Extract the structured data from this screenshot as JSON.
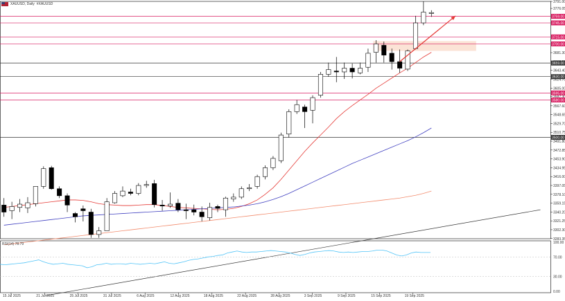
{
  "header": {
    "symbol": "XAUUSD, Daily",
    "symbol_alt": "#XAUUSD"
  },
  "colors": {
    "up_candle": "#ffffff",
    "down_candle": "#000000",
    "ma_fast": "#e53935",
    "ma_mid": "#3f3fc0",
    "ma_slow": "#f28a6b",
    "level_line": "#d81b60",
    "support_line": "#333333",
    "arrow": "#e53935",
    "zone": "#fbe3d6",
    "rsi": "#4fc3f7"
  },
  "chart_data": [
    {
      "type": "candlestick",
      "timeframe": "Daily",
      "ylim": [
        3283.0,
        3791.0
      ],
      "x_tick_labels": [
        "15 Jul 2025",
        "21 Jul 2025",
        "25 Jul 2025",
        "31 Jul 2025",
        "6 Aug 2025",
        "12 Aug 2025",
        "18 Aug 2025",
        "22 Aug 2025",
        "28 Aug 2025",
        "3 Sep 2025",
        "9 Sep 2025",
        "15 Sep 2025",
        "19 Sep 2025"
      ],
      "y_tick_labels": [
        "3791.00",
        "3776.05",
        "3681.30",
        "3662.20",
        "3643.40",
        "3624.70",
        "3605.00",
        "3587.30",
        "3567.60",
        "3548.65",
        "3529.70",
        "3510.75",
        "3491.80",
        "3472.85",
        "3453.90",
        "3434.95",
        "3416.00",
        "3397.05",
        "3378.10",
        "3359.15",
        "3340.20",
        "3321.25",
        "3302.30",
        "3283.35"
      ],
      "level_labels": [
        {
          "label": "3759.00",
          "value": 3759.0,
          "color": "#d81b60"
        },
        {
          "label": "3745.00",
          "value": 3745.0,
          "color": "#d81b60"
        },
        {
          "label": "3715.00",
          "value": 3715.0,
          "color": "#d81b60"
        },
        {
          "label": "3700.00",
          "value": 3700.0,
          "color": "#d81b60"
        },
        {
          "label": "3659.00",
          "value": 3659.0,
          "color": "#333333"
        },
        {
          "label": "3630.00",
          "value": 3630.0,
          "color": "#333333"
        },
        {
          "label": "3595.00",
          "value": 3595.0,
          "color": "#d81b60"
        },
        {
          "label": "3580.00",
          "value": 3580.0,
          "color": "#d81b60"
        },
        {
          "label": "3500.00",
          "value": 3500.0,
          "color": "#333333"
        }
      ],
      "candles": [
        {
          "o": 3355,
          "h": 3370,
          "l": 3330,
          "c": 3340
        },
        {
          "o": 3343,
          "h": 3362,
          "l": 3325,
          "c": 3352
        },
        {
          "o": 3350,
          "h": 3368,
          "l": 3340,
          "c": 3357
        },
        {
          "o": 3349,
          "h": 3372,
          "l": 3338,
          "c": 3360
        },
        {
          "o": 3358,
          "h": 3395,
          "l": 3352,
          "c": 3395
        },
        {
          "o": 3395,
          "h": 3438,
          "l": 3390,
          "c": 3433
        },
        {
          "o": 3435,
          "h": 3439,
          "l": 3388,
          "c": 3390
        },
        {
          "o": 3390,
          "h": 3395,
          "l": 3370,
          "c": 3375
        },
        {
          "o": 3375,
          "h": 3380,
          "l": 3340,
          "c": 3355
        },
        {
          "o": 3337,
          "h": 3340,
          "l": 3318,
          "c": 3330
        },
        {
          "o": 3347,
          "h": 3354,
          "l": 3320,
          "c": 3343
        },
        {
          "o": 3340,
          "h": 3347,
          "l": 3285,
          "c": 3292
        },
        {
          "o": 3292,
          "h": 3308,
          "l": 3285,
          "c": 3300
        },
        {
          "o": 3300,
          "h": 3370,
          "l": 3300,
          "c": 3362
        },
        {
          "o": 3360,
          "h": 3385,
          "l": 3358,
          "c": 3380
        },
        {
          "o": 3375,
          "h": 3395,
          "l": 3372,
          "c": 3385
        },
        {
          "o": 3383,
          "h": 3390,
          "l": 3376,
          "c": 3380
        },
        {
          "o": 3380,
          "h": 3402,
          "l": 3376,
          "c": 3397
        },
        {
          "o": 3397,
          "h": 3407,
          "l": 3392,
          "c": 3399
        },
        {
          "o": 3401,
          "h": 3409,
          "l": 3350,
          "c": 3356
        },
        {
          "o": 3355,
          "h": 3366,
          "l": 3343,
          "c": 3353
        },
        {
          "o": 3353,
          "h": 3382,
          "l": 3349,
          "c": 3357
        },
        {
          "o": 3359,
          "h": 3368,
          "l": 3340,
          "c": 3345
        },
        {
          "o": 3345,
          "h": 3358,
          "l": 3325,
          "c": 3343
        },
        {
          "o": 3345,
          "h": 3356,
          "l": 3333,
          "c": 3340
        },
        {
          "o": 3340,
          "h": 3352,
          "l": 3320,
          "c": 3330
        },
        {
          "o": 3328,
          "h": 3360,
          "l": 3322,
          "c": 3350
        },
        {
          "o": 3352,
          "h": 3356,
          "l": 3340,
          "c": 3348
        },
        {
          "o": 3345,
          "h": 3373,
          "l": 3330,
          "c": 3370
        },
        {
          "o": 3368,
          "h": 3380,
          "l": 3362,
          "c": 3372
        },
        {
          "o": 3372,
          "h": 3395,
          "l": 3368,
          "c": 3390
        },
        {
          "o": 3390,
          "h": 3400,
          "l": 3385,
          "c": 3392
        },
        {
          "o": 3395,
          "h": 3420,
          "l": 3390,
          "c": 3416
        },
        {
          "o": 3416,
          "h": 3440,
          "l": 3410,
          "c": 3435
        },
        {
          "o": 3435,
          "h": 3460,
          "l": 3430,
          "c": 3455
        },
        {
          "o": 3450,
          "h": 3510,
          "l": 3445,
          "c": 3505
        },
        {
          "o": 3507,
          "h": 3560,
          "l": 3500,
          "c": 3555
        },
        {
          "o": 3555,
          "h": 3580,
          "l": 3550,
          "c": 3570
        },
        {
          "o": 3565,
          "h": 3570,
          "l": 3520,
          "c": 3555
        },
        {
          "o": 3558,
          "h": 3590,
          "l": 3530,
          "c": 3585
        },
        {
          "o": 3590,
          "h": 3640,
          "l": 3585,
          "c": 3635
        },
        {
          "o": 3635,
          "h": 3660,
          "l": 3630,
          "c": 3645
        },
        {
          "o": 3642,
          "h": 3672,
          "l": 3618,
          "c": 3640
        },
        {
          "o": 3640,
          "h": 3660,
          "l": 3625,
          "c": 3648
        },
        {
          "o": 3648,
          "h": 3658,
          "l": 3626,
          "c": 3640
        },
        {
          "o": 3638,
          "h": 3660,
          "l": 3635,
          "c": 3648
        },
        {
          "o": 3650,
          "h": 3690,
          "l": 3640,
          "c": 3680
        },
        {
          "o": 3682,
          "h": 3708,
          "l": 3660,
          "c": 3700
        },
        {
          "o": 3697,
          "h": 3705,
          "l": 3660,
          "c": 3676
        },
        {
          "o": 3680,
          "h": 3690,
          "l": 3645,
          "c": 3662
        },
        {
          "o": 3662,
          "h": 3688,
          "l": 3638,
          "c": 3648
        },
        {
          "o": 3646,
          "h": 3688,
          "l": 3642,
          "c": 3685
        },
        {
          "o": 3690,
          "h": 3760,
          "l": 3688,
          "c": 3745
        },
        {
          "o": 3745,
          "h": 3791,
          "l": 3740,
          "c": 3768
        },
        {
          "o": 3765,
          "h": 3772,
          "l": 3758,
          "c": 3767
        }
      ],
      "series": [
        {
          "values": [
            3350,
            3352,
            3354,
            3356,
            3358,
            3360,
            3362,
            3364,
            3366,
            3366,
            3365,
            3362,
            3358,
            3356,
            3355,
            3354,
            3354,
            3355,
            3356,
            3356,
            3354,
            3352,
            3350,
            3349,
            3348,
            3347,
            3346,
            3345,
            3346,
            3348,
            3352,
            3358,
            3366,
            3378,
            3392,
            3410,
            3430,
            3450,
            3470,
            3488,
            3505,
            3522,
            3540,
            3555,
            3568,
            3580,
            3592,
            3605,
            3616,
            3627,
            3638,
            3648,
            3660,
            3672,
            3682
          ]
        },
        {
          "values": [
            3312,
            3314,
            3316,
            3318,
            3320,
            3322,
            3324,
            3326,
            3328,
            3330,
            3332,
            3333,
            3334,
            3335,
            3336,
            3337,
            3338,
            3339,
            3340,
            3341,
            3342,
            3343,
            3344,
            3345,
            3346,
            3347,
            3348,
            3349,
            3350,
            3351,
            3353,
            3355,
            3358,
            3362,
            3367,
            3373,
            3380,
            3388,
            3396,
            3404,
            3412,
            3420,
            3428,
            3436,
            3444,
            3451,
            3458,
            3465,
            3472,
            3479,
            3486,
            3493,
            3501,
            3510,
            3520
          ]
        },
        {
          "values": [
            3270,
            3272,
            3274,
            3276,
            3278,
            3280,
            3282,
            3284,
            3286,
            3288,
            3290,
            3292,
            3294,
            3296,
            3298,
            3300,
            3302,
            3304,
            3306,
            3308,
            3310,
            3312,
            3314,
            3316,
            3318,
            3320,
            3322,
            3324,
            3326,
            3328,
            3330,
            3332,
            3334,
            3336,
            3338,
            3340,
            3342,
            3344,
            3346,
            3348,
            3350,
            3352,
            3354,
            3356,
            3358,
            3360,
            3362,
            3364,
            3366,
            3368,
            3370,
            3373,
            3376,
            3380,
            3385
          ]
        }
      ],
      "support_line": [
        {
          "i": 0,
          "v": 3250
        },
        {
          "i": 52,
          "v": 3345
        }
      ],
      "arrow": [
        {
          "i": 50,
          "v": 3662
        },
        {
          "i": 56,
          "v": 3760
        }
      ],
      "zone": {
        "i0": 47,
        "i1": 60,
        "v0": 3685,
        "v1": 3706
      }
    },
    {
      "type": "line",
      "indicator": "RSI(14) 78.79",
      "ylim": [
        0,
        100
      ],
      "y_tick_labels": [
        "100.00",
        "70.00",
        "30.00",
        "0.00"
      ],
      "levels": [
        70,
        30
      ],
      "values": [
        55,
        54,
        55,
        56,
        57,
        58,
        60,
        62,
        64,
        60,
        57,
        55,
        56,
        57,
        55,
        54,
        53,
        52,
        48,
        50,
        54,
        55,
        57,
        55,
        56,
        56,
        55,
        57,
        56,
        55,
        56,
        57,
        56,
        58,
        60,
        57,
        56,
        58,
        60,
        63,
        65,
        66,
        68,
        70,
        71,
        73,
        74,
        78,
        80,
        82,
        80,
        79,
        80,
        80,
        81,
        82,
        83,
        82,
        81,
        80,
        78,
        75,
        73,
        75,
        78,
        80,
        81,
        82,
        83,
        82,
        80,
        79,
        80,
        79,
        80,
        81,
        81,
        82,
        84,
        84,
        82,
        78,
        74,
        72,
        74,
        78,
        80,
        79,
        79,
        79
      ]
    }
  ]
}
